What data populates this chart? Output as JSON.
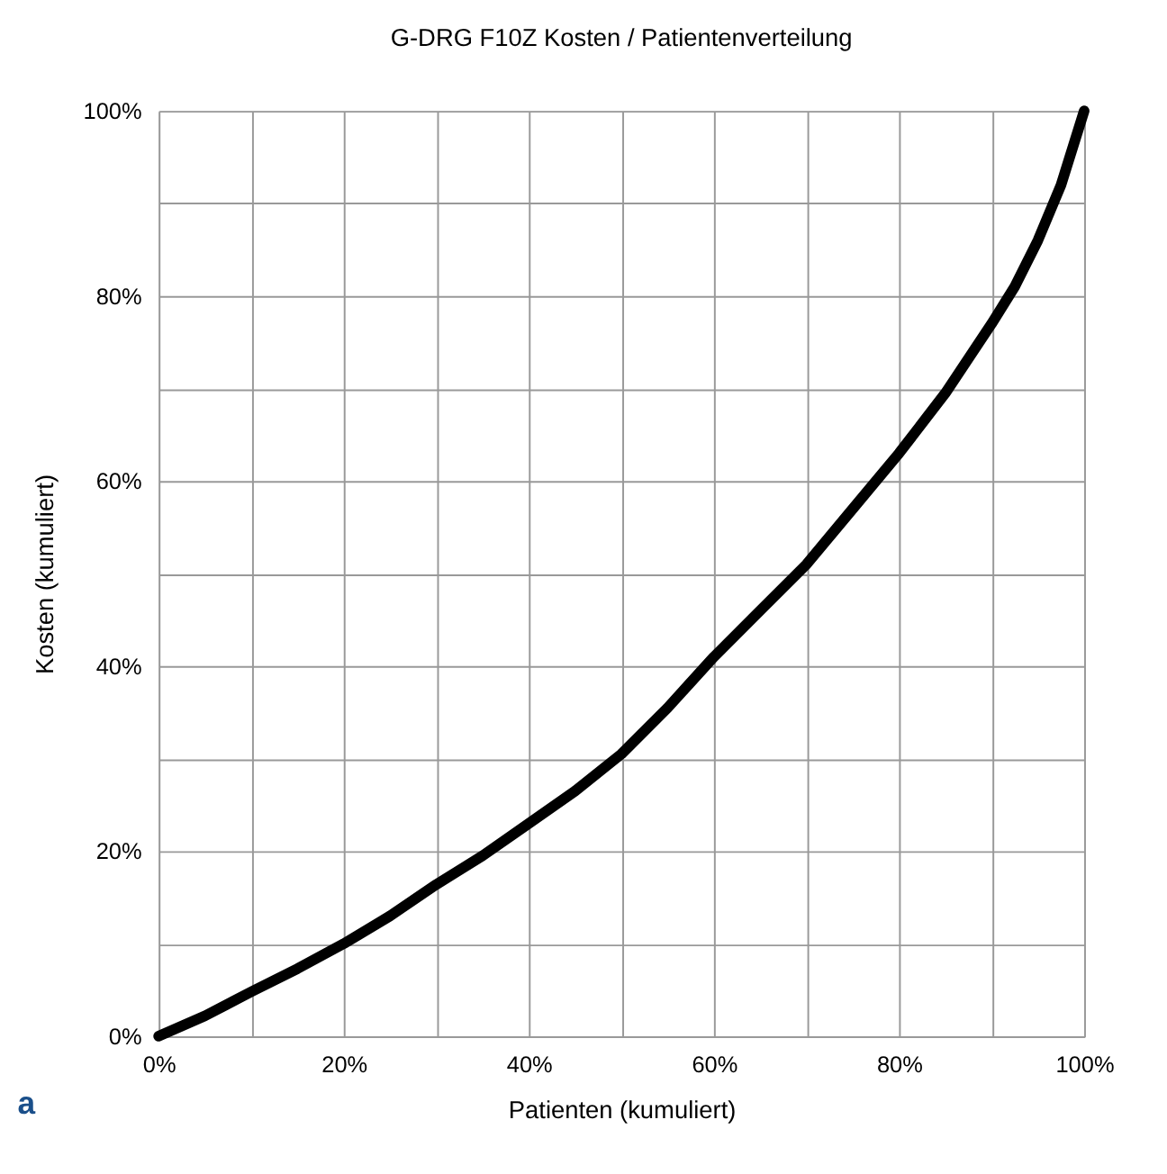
{
  "chart_data": {
    "type": "line",
    "title": "G-DRG  F10Z  Kosten / Patientenverteilung",
    "xlabel": "Patienten (kumuliert)",
    "ylabel": "Kosten  (kumuliert)",
    "x": [
      0,
      5,
      10,
      15,
      20,
      25,
      30,
      35,
      40,
      45,
      50,
      55,
      60,
      65,
      70,
      75,
      80,
      85,
      90,
      92.5,
      95,
      97.5,
      100
    ],
    "series": [
      {
        "color": "#000000",
        "values": [
          0,
          2.2,
          4.8,
          7.3,
          10,
          13,
          16.4,
          19.5,
          23,
          26.5,
          30.5,
          35.5,
          41,
          46,
          51,
          57,
          63,
          69.5,
          77,
          81,
          86,
          92,
          100
        ]
      }
    ],
    "xlim": [
      0,
      100
    ],
    "ylim": [
      0,
      100
    ],
    "xticks": [
      {
        "value": 0,
        "label": "0%"
      },
      {
        "value": 10,
        "label": null
      },
      {
        "value": 20,
        "label": "20%"
      },
      {
        "value": 30,
        "label": null
      },
      {
        "value": 40,
        "label": "40%"
      },
      {
        "value": 50,
        "label": null
      },
      {
        "value": 60,
        "label": "60%"
      },
      {
        "value": 70,
        "label": null
      },
      {
        "value": 80,
        "label": "80%"
      },
      {
        "value": 90,
        "label": null
      },
      {
        "value": 100,
        "label": "100%"
      }
    ],
    "yticks": [
      {
        "value": 0,
        "label": "0%"
      },
      {
        "value": 10,
        "label": null
      },
      {
        "value": 20,
        "label": "20%"
      },
      {
        "value": 30,
        "label": null
      },
      {
        "value": 40,
        "label": "40%"
      },
      {
        "value": 50,
        "label": null
      },
      {
        "value": 60,
        "label": "60%"
      },
      {
        "value": 70,
        "label": null
      },
      {
        "value": 80,
        "label": "80%"
      },
      {
        "value": 90,
        "label": null
      },
      {
        "value": 100,
        "label": "100%"
      }
    ],
    "grid": true,
    "line_style": "solid",
    "marker": "none",
    "annotations": [
      "a"
    ]
  }
}
